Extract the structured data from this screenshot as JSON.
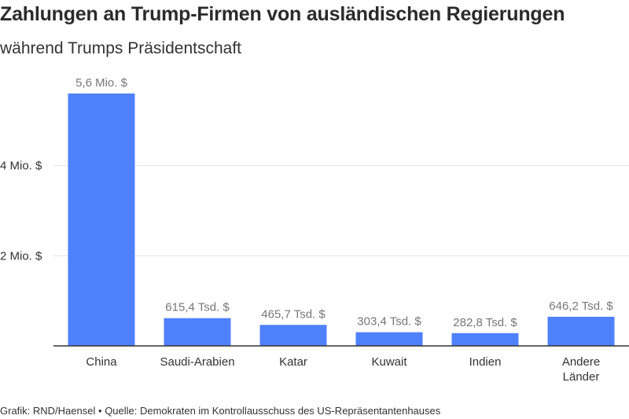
{
  "title": "Zahlungen an Trump-Firmen von ausländischen Regierungen",
  "subtitle": "während Trumps Präsidentschaft",
  "footer": {
    "credit": "Grafik: RND/Haensel",
    "separator": "•",
    "source": "Quelle: Demokraten im Kontrollausschuss des US-Repräsentantenhauses"
  },
  "chart_data": {
    "type": "bar",
    "title": "Zahlungen an Trump-Firmen von ausländischen Regierungen",
    "subtitle": "während Trumps Präsidentschaft",
    "categories": [
      [
        "China"
      ],
      [
        "Saudi-Arabien"
      ],
      [
        "Katar"
      ],
      [
        "Kuwait"
      ],
      [
        "Indien"
      ],
      [
        "Andere",
        "Länder"
      ]
    ],
    "values": [
      5600000,
      615400,
      465700,
      303400,
      282800,
      646200
    ],
    "data_labels": [
      "5,6 Mio. $",
      "615,4 Tsd. $",
      "465,7 Tsd. $",
      "303,4 Tsd. $",
      "282,8 Tsd. $",
      "646,2 Tsd. $"
    ],
    "yticks": [
      {
        "value": 2000000,
        "label": "2 Mio. $"
      },
      {
        "value": 4000000,
        "label": "4 Mio. $"
      }
    ],
    "ylim": [
      0,
      6000000
    ],
    "xlabel": "",
    "ylabel": "",
    "grid": true,
    "colors": {
      "bar": "#4f81fd",
      "grid": "#e3e3e3",
      "axis": "#333333"
    }
  }
}
